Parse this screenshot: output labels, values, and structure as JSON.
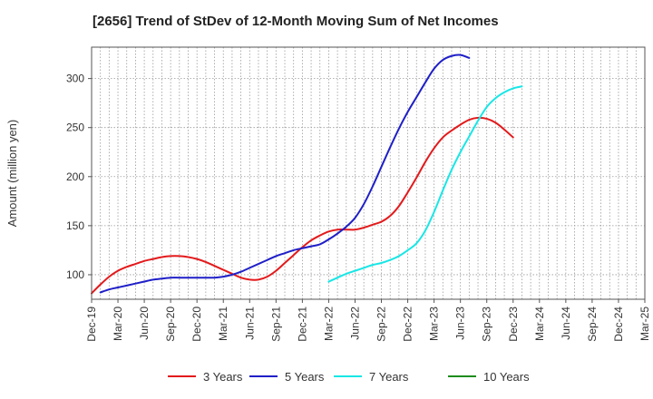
{
  "chart_data": {
    "type": "line",
    "title": "[2656]  Trend of StDev of 12-Month Moving Sum of Net Incomes",
    "xlabel": "",
    "ylabel": "Amount (million yen)",
    "ylim": [
      75,
      332
    ],
    "yticks": [
      100,
      150,
      200,
      250,
      300
    ],
    "x_tick_labels": [
      "Dec-19",
      "Mar-20",
      "Jun-20",
      "Sep-20",
      "Dec-20",
      "Mar-21",
      "Jun-21",
      "Sep-21",
      "Dec-21",
      "Mar-22",
      "Jun-22",
      "Sep-22",
      "Dec-22",
      "Mar-23",
      "Jun-23",
      "Sep-23",
      "Dec-23",
      "Mar-24",
      "Jun-24",
      "Sep-24",
      "Dec-24",
      "Mar-25"
    ],
    "grid": true,
    "legend_position": "bottom",
    "series": [
      {
        "name": "3 Years",
        "color": "#e31a1c",
        "start_index": 0,
        "values": [
          81,
          90,
          98,
          104,
          108,
          111,
          114,
          116,
          118,
          119,
          119,
          118,
          116,
          113,
          109,
          105,
          101,
          97,
          95,
          95,
          98,
          104,
          112,
          120,
          128,
          135,
          140,
          144,
          146,
          146,
          146,
          148,
          151,
          154,
          160,
          170,
          184,
          199,
          215,
          229,
          240,
          247,
          253,
          258,
          260,
          259,
          255,
          248,
          240
        ]
      },
      {
        "name": "5 Years",
        "color": "#1f1fc8",
        "start_index": 1,
        "values": [
          82,
          85,
          87,
          89,
          91,
          93,
          95,
          96,
          97,
          97,
          97,
          97,
          97,
          97,
          98,
          100,
          103,
          107,
          111,
          115,
          119,
          122,
          125,
          127,
          129,
          131,
          136,
          142,
          149,
          158,
          172,
          190,
          210,
          230,
          249,
          266,
          281,
          296,
          310,
          319,
          323,
          324,
          321
        ]
      },
      {
        "name": "7 Years",
        "color": "#19e6e6",
        "start_index": 27,
        "values": [
          93,
          97,
          101,
          104,
          107,
          110,
          112,
          115,
          119,
          125,
          132,
          145,
          164,
          186,
          207,
          225,
          241,
          257,
          271,
          280,
          286,
          290,
          292
        ]
      },
      {
        "name": "10 Years",
        "color": "#1e8c1e",
        "start_index": 0,
        "values": []
      }
    ]
  }
}
